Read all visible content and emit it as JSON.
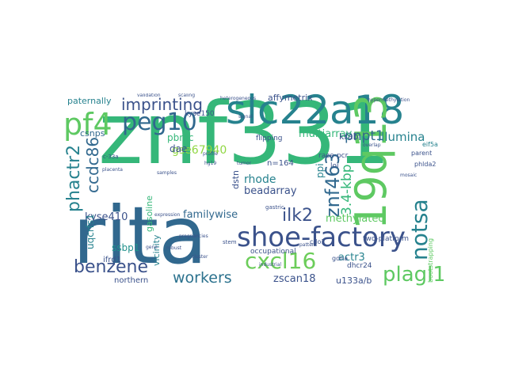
{
  "cloud": {
    "words": [
      {
        "text": "znf331",
        "color": "#35b779"
      },
      {
        "text": "rita",
        "color": "#31688e"
      },
      {
        "text": "slc22a18",
        "color": "#26828e"
      },
      {
        "text": "19q13",
        "color": "#5ec962"
      },
      {
        "text": "shoe-factory",
        "color": "#3b528b"
      },
      {
        "text": "cxcl16",
        "color": "#6ccd5a"
      },
      {
        "text": "peg10",
        "color": "#31688e"
      },
      {
        "text": "pf4",
        "color": "#5ec962"
      },
      {
        "text": "imprinting",
        "color": "#3b528b"
      },
      {
        "text": "plagl1",
        "color": "#5ec962"
      },
      {
        "text": "notsa",
        "color": "#26828e"
      },
      {
        "text": "benzene",
        "color": "#3b528b"
      },
      {
        "text": "workers",
        "color": "#2c728e"
      },
      {
        "text": "phactr2",
        "color": "#26828e"
      },
      {
        "text": "ccdc86",
        "color": "#31688e"
      },
      {
        "text": "znf463",
        "color": "#31688e"
      },
      {
        "text": "3.4-kbp",
        "color": "#35b779"
      },
      {
        "text": "ilk2",
        "color": "#3b528b"
      },
      {
        "text": "pnpt1",
        "color": "#31688e"
      },
      {
        "text": "illumina",
        "color": "#26828e"
      },
      {
        "text": "multiarray",
        "color": "#35b779"
      },
      {
        "text": "gse67940",
        "color": "#90d743"
      },
      {
        "text": "familywise",
        "color": "#31688e"
      },
      {
        "text": "kyse410",
        "color": "#3b528b"
      },
      {
        "text": "methylated",
        "color": "#5ec962"
      },
      {
        "text": "rhode",
        "color": "#26828e"
      },
      {
        "text": "beadarray",
        "color": "#3b528b"
      },
      {
        "text": "zscan18",
        "color": "#3b528b"
      },
      {
        "text": "actr3",
        "color": "#26828e"
      },
      {
        "text": "uqcrfs1",
        "color": "#26828e"
      },
      {
        "text": "ssbp1",
        "color": "#21918c"
      },
      {
        "text": "affymetrix",
        "color": "#3b528b"
      },
      {
        "text": "paternally",
        "color": "#26828e"
      },
      {
        "text": "pbmc",
        "color": "#35b779"
      },
      {
        "text": "dae",
        "color": "#3b528b"
      },
      {
        "text": "csnps",
        "color": "#31688e"
      },
      {
        "text": "gasoline",
        "color": "#35b779"
      },
      {
        "text": "vicinity",
        "color": "#26828e"
      },
      {
        "text": "dstn",
        "color": "#3b528b"
      },
      {
        "text": "n=164",
        "color": "#3b528b"
      },
      {
        "text": "ppi",
        "color": "#26828e"
      },
      {
        "text": "krab",
        "color": "#3b528b"
      },
      {
        "text": "u133a/b",
        "color": "#3b528b"
      },
      {
        "text": "ifrd1",
        "color": "#3b528b"
      },
      {
        "text": "northern",
        "color": "#3b528b"
      },
      {
        "text": "occupational",
        "color": "#3b528b"
      },
      {
        "text": "two-platform",
        "color": "#3b528b"
      },
      {
        "text": "dhcr24",
        "color": "#3b528b"
      },
      {
        "text": "kyse150",
        "color": "#3b528b"
      },
      {
        "text": "flipping",
        "color": "#3b528b"
      },
      {
        "text": "race-pcr",
        "color": "#3b528b"
      },
      {
        "text": "loi",
        "color": "#3b528b"
      },
      {
        "text": "cdo1",
        "color": "#3b528b"
      },
      {
        "text": "bootstrapping",
        "color": "#5ec962"
      },
      {
        "text": "parent",
        "color": "#3b528b"
      },
      {
        "text": "phlda2",
        "color": "#3b528b"
      },
      {
        "text": "gdna",
        "color": "#3b528b"
      },
      {
        "text": "eif5a",
        "color": "#26828e"
      },
      {
        "text": "c-33a",
        "color": "#3b528b"
      },
      {
        "text": "gastric",
        "color": "#3b528b"
      },
      {
        "text": "stem",
        "color": "#3b528b"
      },
      {
        "text": "samples",
        "color": "#3b528b"
      },
      {
        "text": "overlap",
        "color": "#3b528b"
      },
      {
        "text": "cluster",
        "color": "#3b528b"
      },
      {
        "text": "profile",
        "color": "#3b528b"
      },
      {
        "text": "heterogeneous",
        "color": "#3b528b"
      },
      {
        "text": "gene",
        "color": "#3b528b"
      },
      {
        "text": "hypermethylation",
        "color": "#3b528b"
      },
      {
        "text": "placenta",
        "color": "#3b528b"
      },
      {
        "text": "tumor",
        "color": "#3b528b"
      },
      {
        "text": "expression",
        "color": "#3b528b"
      },
      {
        "text": "pregnancies",
        "color": "#3b528b"
      },
      {
        "text": "industrial",
        "color": "#3b528b"
      },
      {
        "text": "robust",
        "color": "#3b528b"
      },
      {
        "text": "pattern",
        "color": "#3b528b"
      },
      {
        "text": "signal",
        "color": "#3b528b"
      },
      {
        "text": "scaling",
        "color": "#3b528b"
      },
      {
        "text": "mosaic",
        "color": "#3b528b"
      },
      {
        "text": "hg19",
        "color": "#3b528b"
      },
      {
        "text": "validation",
        "color": "#3b528b"
      }
    ]
  }
}
